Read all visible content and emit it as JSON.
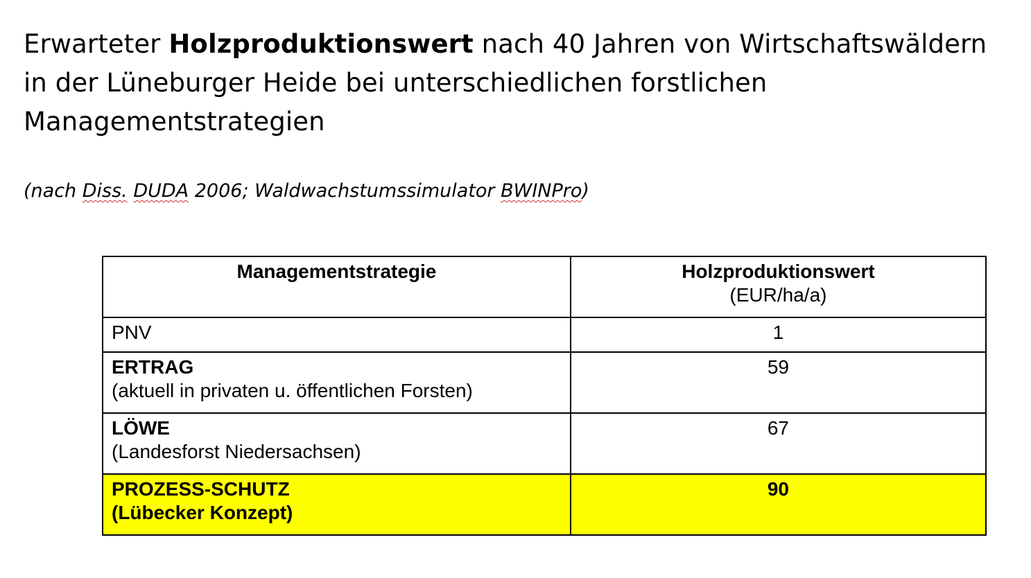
{
  "title": {
    "prefix": "Erwarteter ",
    "emphasis": "Holzproduktionswert",
    "suffix": " nach 40 Jahren von Wirtschaftswäldern in der Lüneburger Heide bei unterschiedlichen forstlichen Managementstrategien"
  },
  "source": {
    "open": "(nach ",
    "diss": "Diss.",
    "duda": "DUDA",
    "middle": " 2006; Waldwachstumssimulator ",
    "bwinpro": "BWINPro",
    "close": ")"
  },
  "table": {
    "header": {
      "col1": "Managementstrategie",
      "col2": "Holzproduktionswert",
      "col2_unit": "(EUR/ha/a)"
    },
    "rows": [
      {
        "name": "PNV",
        "desc": "",
        "value": "1"
      },
      {
        "name": "ERTRAG",
        "desc": "(aktuell in privaten u. öffentlichen Forsten)",
        "value": "59"
      },
      {
        "name": "LÖWE",
        "desc": "(Landesforst Niedersachsen)",
        "value": "67"
      },
      {
        "name": "PROZESS-SCHUTZ",
        "desc": "(Lübecker Konzept)",
        "value": "90"
      }
    ],
    "highlight_color": "#ffff00"
  }
}
